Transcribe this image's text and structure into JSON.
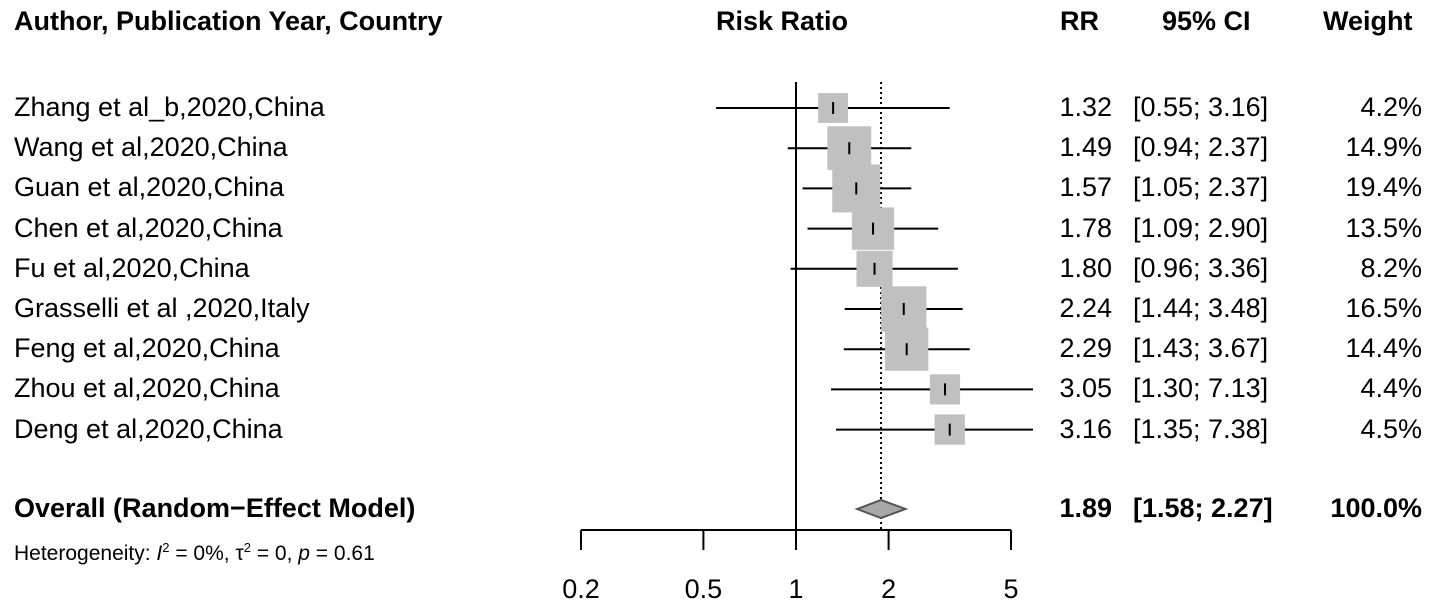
{
  "header": {
    "study": "Author, Publication Year, Country",
    "plot": "Risk Ratio",
    "rr": "RR",
    "ci": "95% CI",
    "weight": "Weight"
  },
  "chart_data": {
    "type": "forest",
    "x_scale": "log",
    "xlim": [
      0.2,
      5
    ],
    "ticks": [
      "0.2",
      "0.5",
      "1",
      "2",
      "5"
    ],
    "tick_values": [
      0.2,
      0.5,
      1,
      2,
      5
    ],
    "null_line": 1,
    "overall_line": 1.89,
    "studies": [
      {
        "label": "Zhang et al_b,2020,China",
        "rr": 1.32,
        "lo": 0.55,
        "hi": 3.16,
        "rr_text": "1.32",
        "ci_text": "[0.55; 3.16]",
        "weight_text": "4.2%",
        "weight": 4.2
      },
      {
        "label": "Wang et al,2020,China",
        "rr": 1.49,
        "lo": 0.94,
        "hi": 2.37,
        "rr_text": "1.49",
        "ci_text": "[0.94; 2.37]",
        "weight_text": "14.9%",
        "weight": 14.9
      },
      {
        "label": "Guan et al,2020,China",
        "rr": 1.57,
        "lo": 1.05,
        "hi": 2.37,
        "rr_text": "1.57",
        "ci_text": "[1.05; 2.37]",
        "weight_text": "19.4%",
        "weight": 19.4
      },
      {
        "label": "Chen et al,2020,China",
        "rr": 1.78,
        "lo": 1.09,
        "hi": 2.9,
        "rr_text": "1.78",
        "ci_text": "[1.09; 2.90]",
        "weight_text": "13.5%",
        "weight": 13.5
      },
      {
        "label": "Fu et al,2020,China",
        "rr": 1.8,
        "lo": 0.96,
        "hi": 3.36,
        "rr_text": "1.80",
        "ci_text": "[0.96; 3.36]",
        "weight_text": "8.2%",
        "weight": 8.2
      },
      {
        "label": "Grasselli et al ,2020,Italy",
        "rr": 2.24,
        "lo": 1.44,
        "hi": 3.48,
        "rr_text": "2.24",
        "ci_text": "[1.44; 3.48]",
        "weight_text": "16.5%",
        "weight": 16.5
      },
      {
        "label": "Feng et al,2020,China",
        "rr": 2.29,
        "lo": 1.43,
        "hi": 3.67,
        "rr_text": "2.29",
        "ci_text": "[1.43; 3.67]",
        "weight_text": "14.4%",
        "weight": 14.4
      },
      {
        "label": "Zhou et al,2020,China",
        "rr": 3.05,
        "lo": 1.3,
        "hi": 7.13,
        "rr_text": "3.05",
        "ci_text": "[1.30; 7.13]",
        "weight_text": "4.4%",
        "weight": 4.4
      },
      {
        "label": "Deng et al,2020,China",
        "rr": 3.16,
        "lo": 1.35,
        "hi": 7.38,
        "rr_text": "3.16",
        "ci_text": "[1.35; 7.38]",
        "weight_text": "4.5%",
        "weight": 4.5
      }
    ],
    "overall": {
      "label": "Overall (Random−Effect Model)",
      "rr": 1.89,
      "lo": 1.58,
      "hi": 2.27,
      "rr_text": "1.89",
      "ci_text": "[1.58; 2.27]",
      "weight_text": "100.0%"
    },
    "heterogeneity": {
      "prefix": "Heterogeneity: ",
      "i2_symbol": "I",
      "i2_value": " = 0%, ",
      "tau_symbol": "τ",
      "tau_value": " = 0, ",
      "p_symbol": "p",
      "p_value": " = 0.61"
    },
    "colors": {
      "box": "#c0c0c0",
      "diamond": "#a8a8a8",
      "line": "#000000"
    }
  }
}
